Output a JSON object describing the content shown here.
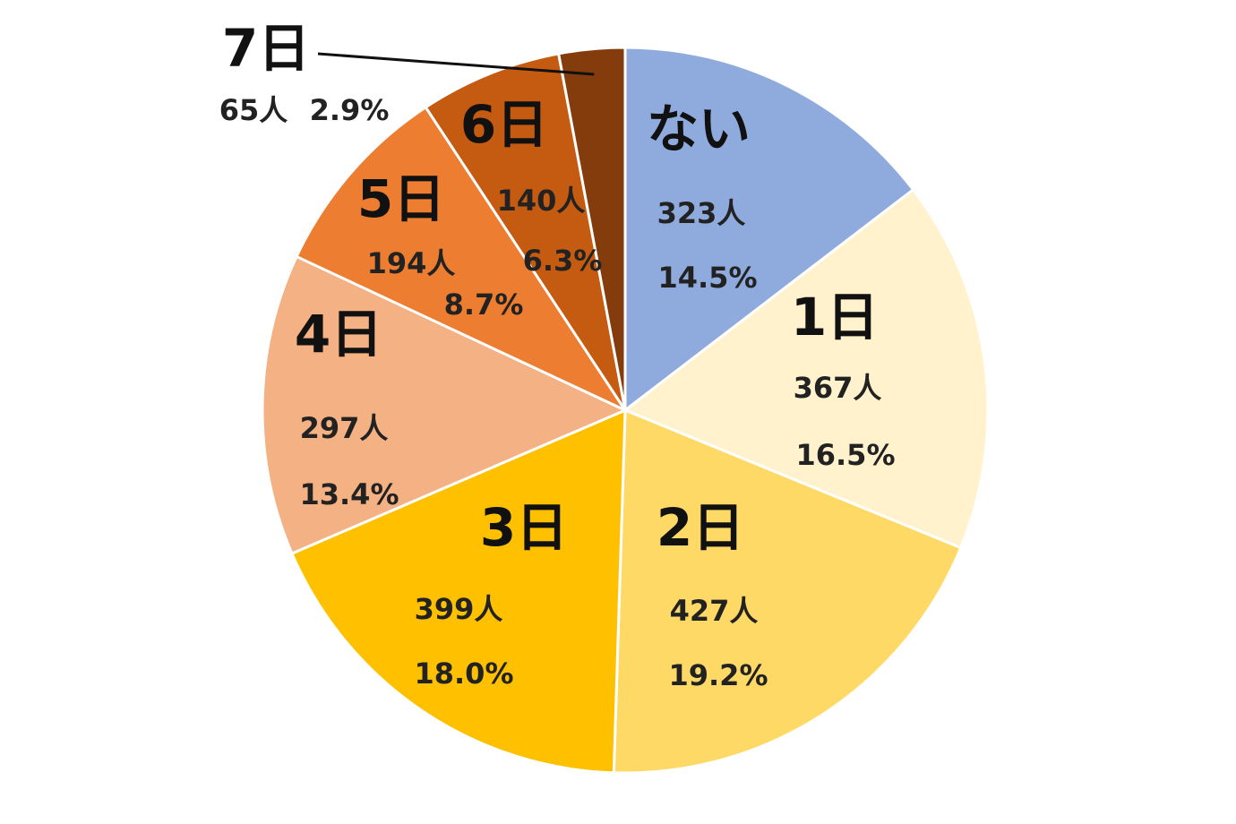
{
  "chart_data": {
    "type": "pie",
    "title": "",
    "unit_people": "人",
    "slices": [
      {
        "label": "ない",
        "count": 323,
        "count_label": "323人",
        "percent": 14.5,
        "percent_label": "14.5%",
        "color": "#8FAADC"
      },
      {
        "label": "1日",
        "count": 367,
        "count_label": "367人",
        "percent": 16.5,
        "percent_label": "16.5%",
        "color": "#FFF2CC"
      },
      {
        "label": "2日",
        "count": 427,
        "count_label": "427人",
        "percent": 19.2,
        "percent_label": "19.2%",
        "color": "#FFD966"
      },
      {
        "label": "3日",
        "count": 399,
        "count_label": "399人",
        "percent": 18.0,
        "percent_label": "18.0%",
        "color": "#FFC000"
      },
      {
        "label": "4日",
        "count": 297,
        "count_label": "297人",
        "percent": 13.4,
        "percent_label": "13.4%",
        "color": "#F4B183"
      },
      {
        "label": "5日",
        "count": 194,
        "count_label": "194人",
        "percent": 8.7,
        "percent_label": "8.7%",
        "color": "#ED7D31"
      },
      {
        "label": "6日",
        "count": 140,
        "count_label": "140人",
        "percent": 6.3,
        "percent_label": "6.3%",
        "color": "#C55A11"
      },
      {
        "label": "7日",
        "count": 65,
        "count_label": "65人",
        "percent": 2.9,
        "percent_label": "2.9%",
        "color": "#843C0C"
      }
    ],
    "legend": "none",
    "start_angle": "12 o'clock",
    "direction": "clockwise"
  }
}
